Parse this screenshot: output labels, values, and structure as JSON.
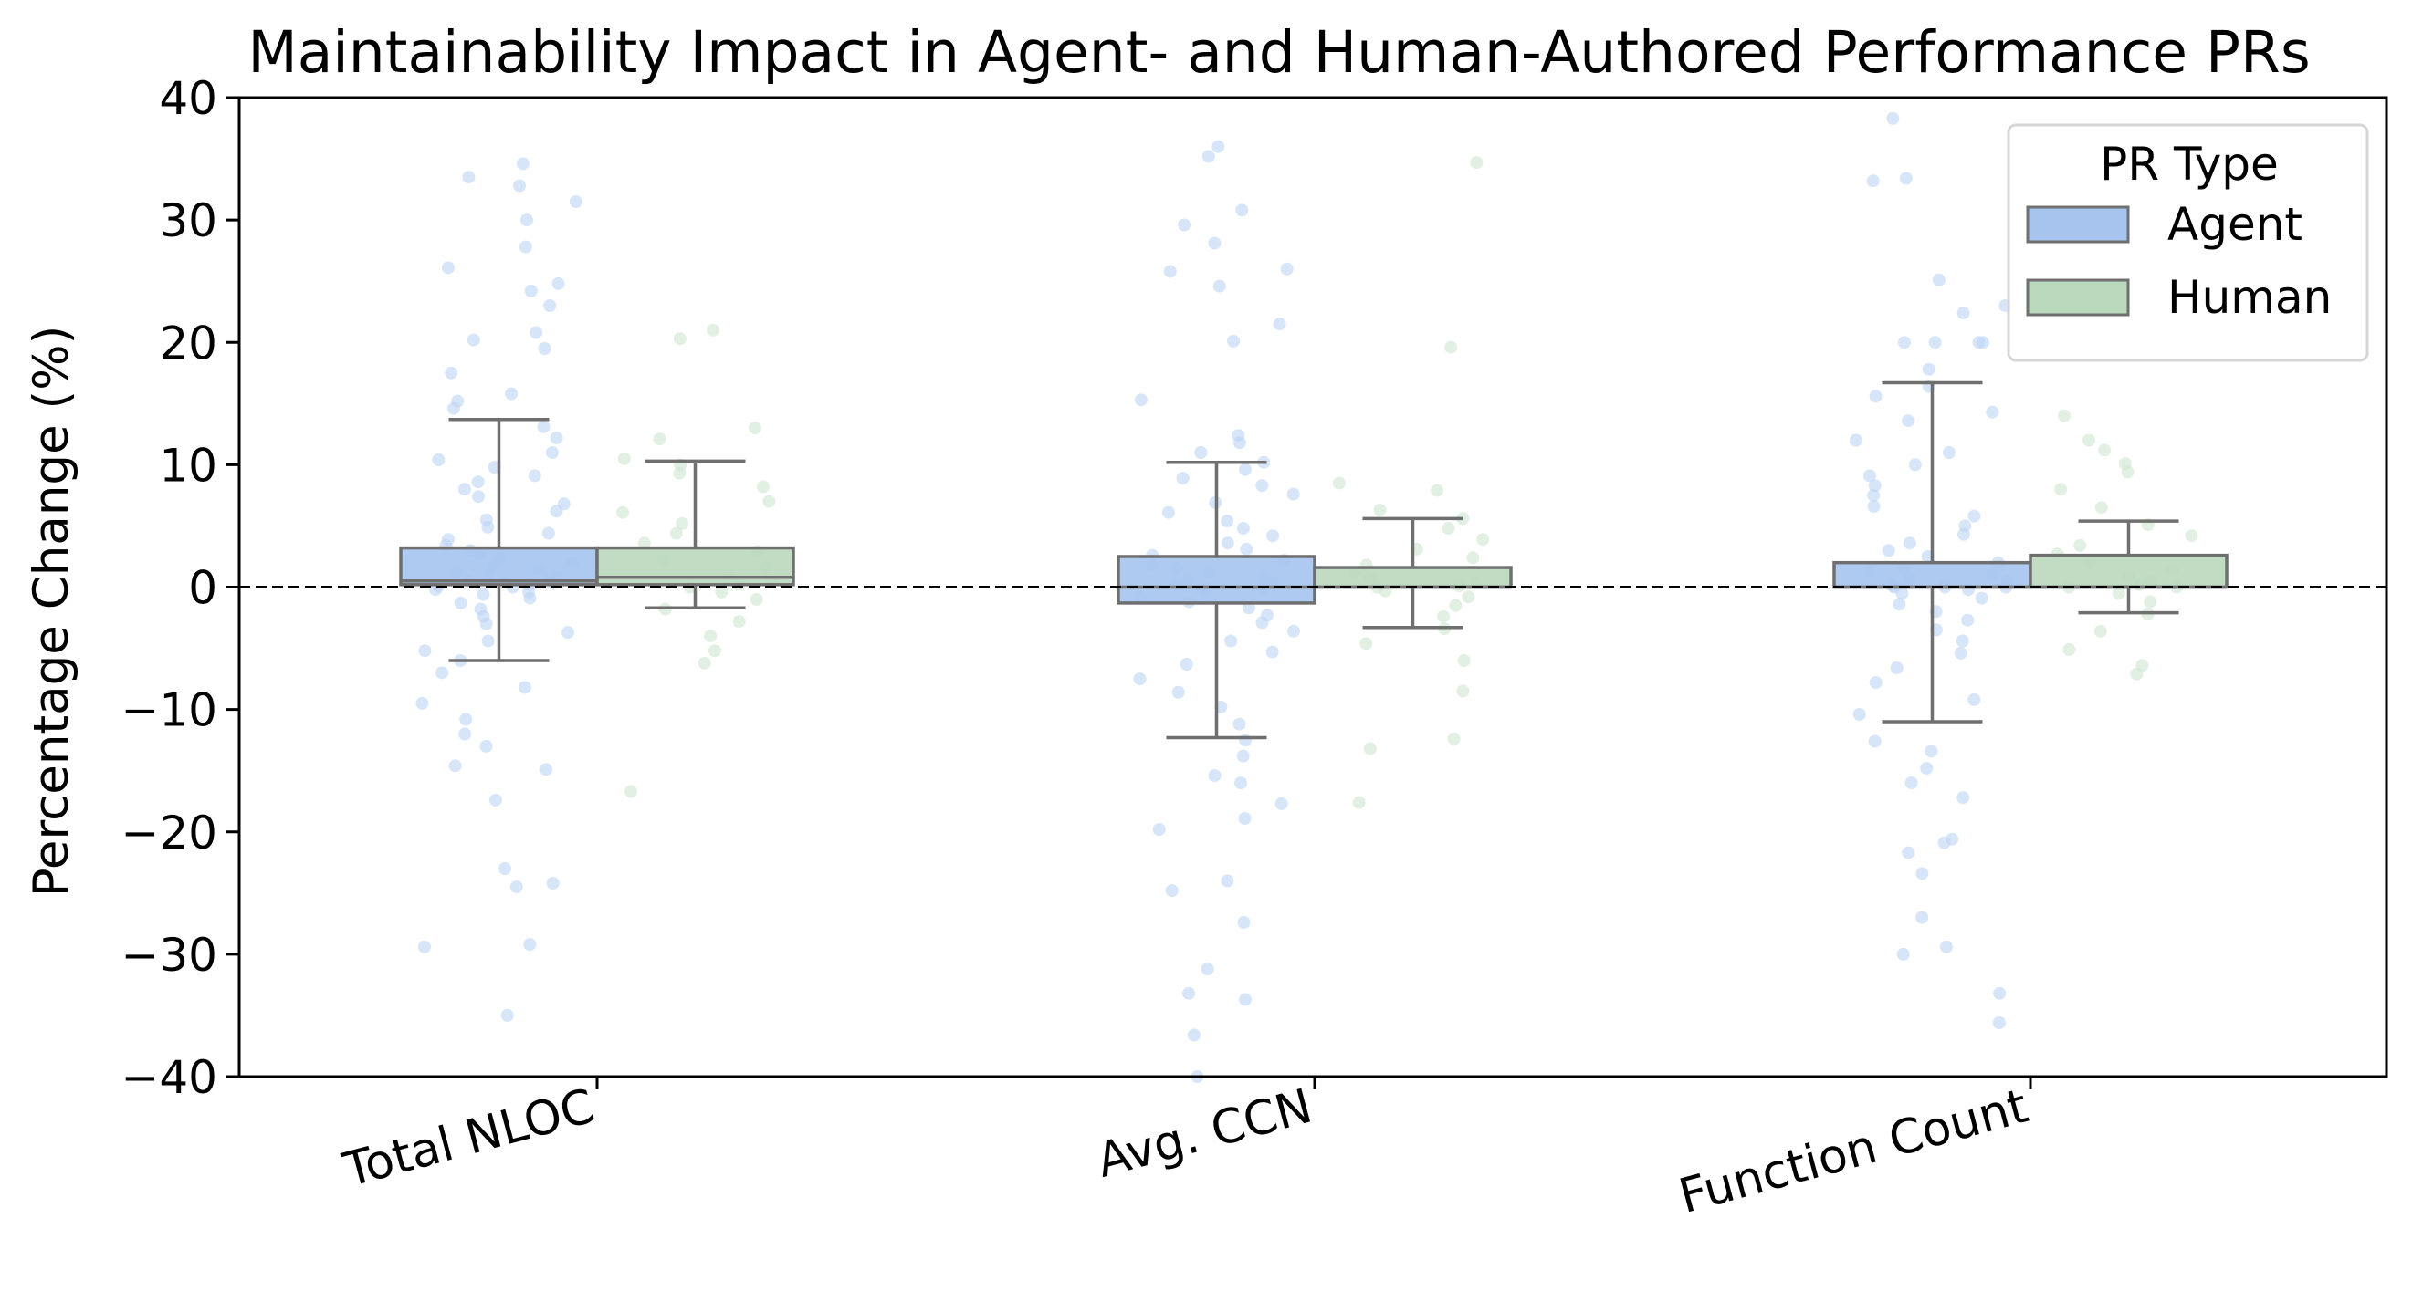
{
  "chart_data": {
    "type": "box",
    "title": "Maintainability Impact in Agent- and Human-Authored Performance PRs",
    "xlabel": "",
    "ylabel": "Percentage Change (%)",
    "ylim": [
      -40,
      40
    ],
    "yticks": [
      -40,
      -30,
      -20,
      -10,
      0,
      10,
      20,
      30,
      40
    ],
    "ytick_labels": [
      "−40",
      "−30",
      "−20",
      "−10",
      "0",
      "10",
      "20",
      "30",
      "40"
    ],
    "categories": [
      "Total NLOC",
      "Avg. CCN",
      "Function Count"
    ],
    "reference_line": 0,
    "legend": {
      "title": "PR Type",
      "position": "top-right"
    },
    "series": [
      {
        "name": "Agent",
        "box_color": "#a6c4ee",
        "point_color": "#bcd3f5",
        "boxes": [
          {
            "whisker_low": -6.0,
            "q1": 0.2,
            "median": 0.5,
            "q3": 3.2,
            "whisker_high": 13.7
          },
          {
            "whisker_low": -12.3,
            "q1": -1.3,
            "median": 0.0,
            "q3": 2.5,
            "whisker_high": 10.2
          },
          {
            "whisker_low": -11.0,
            "q1": 0.0,
            "median": 0.0,
            "q3": 2.0,
            "whisker_high": 16.7
          }
        ],
        "points": [
          [
            34.6,
            33.5,
            32.8,
            31.5,
            30.0,
            27.8,
            26.1,
            24.8,
            24.2,
            23.0,
            20.8,
            20.2,
            19.5,
            17.5,
            15.8,
            15.2,
            14.6,
            13.1,
            12.2,
            11.0,
            10.4,
            9.8,
            9.1,
            8.6,
            8.0,
            7.4,
            6.8,
            6.2,
            5.5,
            4.9,
            4.4,
            3.9,
            3.4,
            3.0,
            2.7,
            2.3,
            2.0,
            1.8,
            1.5,
            1.2,
            1.0,
            0.8,
            0.6,
            0.5,
            0.4,
            0.3,
            0.2,
            0.1,
            0.0,
            -0.2,
            -0.4,
            -0.6,
            -0.9,
            -1.3,
            -1.8,
            -2.4,
            -3.0,
            -3.7,
            -4.4,
            -5.2,
            -6.0,
            -7.0,
            -8.2,
            -9.5,
            -10.8,
            -12.0,
            -13.0,
            -14.6,
            -14.9,
            -17.4,
            -23.0,
            -24.2,
            -24.5,
            -29.2,
            -29.4,
            -35.0
          ],
          [
            35.2,
            36.0,
            30.8,
            29.6,
            28.1,
            26.0,
            25.8,
            24.6,
            21.5,
            20.1,
            15.3,
            12.4,
            11.8,
            11.0,
            10.2,
            9.6,
            8.9,
            8.3,
            7.6,
            6.9,
            6.1,
            5.4,
            4.8,
            4.2,
            3.6,
            3.1,
            2.6,
            2.2,
            1.8,
            1.5,
            1.2,
            0.9,
            0.6,
            0.4,
            0.2,
            0.0,
            -0.2,
            -0.5,
            -0.8,
            -1.2,
            -1.7,
            -2.3,
            -2.9,
            -3.6,
            -4.4,
            -5.3,
            -6.3,
            -7.5,
            -8.6,
            -9.8,
            -11.2,
            -12.5,
            -13.8,
            -15.4,
            -16.0,
            -17.7,
            -18.9,
            -19.8,
            -24.0,
            -24.8,
            -27.4,
            -31.2,
            -33.2,
            -33.7,
            -36.6,
            -40.0
          ],
          [
            38.3,
            33.4,
            33.2,
            25.1,
            23.0,
            22.4,
            20.0,
            20.0,
            20.0,
            20.0,
            17.8,
            16.4,
            15.6,
            14.3,
            13.6,
            12.0,
            11.0,
            10.0,
            9.1,
            8.3,
            7.5,
            6.6,
            5.8,
            5.0,
            4.3,
            3.6,
            3.0,
            2.5,
            2.0,
            1.6,
            1.3,
            1.0,
            0.7,
            0.5,
            0.3,
            0.1,
            0.0,
            0.0,
            0.0,
            -0.2,
            -0.5,
            -0.9,
            -1.4,
            -2.0,
            -2.7,
            -3.5,
            -4.4,
            -5.4,
            -6.6,
            -7.8,
            -9.2,
            -10.4,
            -12.6,
            -13.4,
            -14.8,
            -16.0,
            -17.2,
            -20.6,
            -20.9,
            -21.7,
            -23.4,
            -27.0,
            -29.4,
            -30.0,
            -33.2,
            -35.6
          ]
        ]
      },
      {
        "name": "Human",
        "box_color": "#bad8bc",
        "point_color": "#cfe6d0",
        "boxes": [
          {
            "whisker_low": -1.7,
            "q1": 0.2,
            "median": 0.8,
            "q3": 3.2,
            "whisker_high": 10.3
          },
          {
            "whisker_low": -3.3,
            "q1": 0.0,
            "median": 0.0,
            "q3": 1.6,
            "whisker_high": 5.6
          },
          {
            "whisker_low": -2.1,
            "q1": 0.0,
            "median": 0.0,
            "q3": 2.6,
            "whisker_high": 5.4
          }
        ],
        "points": [
          [
            21.0,
            20.3,
            13.0,
            12.1,
            10.5,
            10.0,
            9.3,
            8.2,
            7.0,
            6.1,
            5.2,
            4.4,
            3.6,
            2.9,
            2.2,
            1.6,
            1.0,
            0.5,
            0.2,
            0.0,
            -0.4,
            -1.0,
            -1.8,
            -2.8,
            -4.0,
            -5.2,
            -6.2,
            -16.7
          ],
          [
            34.7,
            19.6,
            8.5,
            7.9,
            6.3,
            5.6,
            4.8,
            3.9,
            3.1,
            2.4,
            1.8,
            1.2,
            0.8,
            0.4,
            0.1,
            0.0,
            -0.3,
            -0.8,
            -1.5,
            -2.4,
            -3.4,
            -4.6,
            -6.0,
            -8.5,
            -12.4,
            -13.2,
            -17.6
          ],
          [
            14.0,
            12.0,
            11.2,
            10.1,
            9.4,
            8.0,
            6.5,
            5.1,
            4.2,
            3.4,
            2.7,
            2.0,
            1.4,
            0.9,
            0.5,
            0.2,
            0.0,
            0.0,
            -0.5,
            -1.2,
            -2.2,
            -3.6,
            -5.1,
            -6.4,
            -7.1
          ]
        ]
      }
    ]
  }
}
